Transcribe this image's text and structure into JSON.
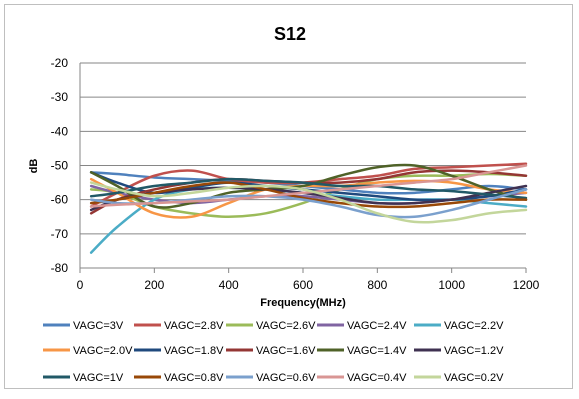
{
  "chart_data": {
    "type": "line",
    "title": "S12",
    "xlabel": "Frequency(MHz)",
    "ylabel": "dB",
    "xlim": [
      0,
      1200
    ],
    "ylim": [
      -80,
      -20
    ],
    "xticks": [
      0,
      200,
      400,
      600,
      800,
      1000,
      1200
    ],
    "yticks": [
      -80,
      -70,
      -60,
      -50,
      -40,
      -30,
      -20
    ],
    "grid": "horizontal",
    "legend": "bottom",
    "x": [
      30,
      100,
      200,
      300,
      400,
      500,
      600,
      700,
      800,
      900,
      1000,
      1100,
      1200
    ],
    "series": [
      {
        "name": "VAGC=3V",
        "color": "#4F81BD",
        "values": [
          -52,
          -52.5,
          -53.5,
          -54,
          -54.5,
          -55,
          -56,
          -57,
          -58,
          -58,
          -57,
          -56,
          -57
        ]
      },
      {
        "name": "VAGC=2.8V",
        "color": "#C0504D",
        "values": [
          -62,
          -58,
          -53,
          -51.5,
          -54,
          -55,
          -55,
          -54,
          -53,
          -51,
          -50.5,
          -50,
          -49.5
        ]
      },
      {
        "name": "VAGC=2.6V",
        "color": "#9BBB59",
        "values": [
          -57,
          -58,
          -62,
          -64,
          -65,
          -64,
          -61,
          -57,
          -54,
          -53,
          -53,
          -52.5,
          -53
        ]
      },
      {
        "name": "VAGC=2.4V",
        "color": "#8064A2",
        "values": [
          -56,
          -58,
          -60,
          -61,
          -60,
          -59,
          -59,
          -60,
          -61,
          -61,
          -60,
          -59,
          -58
        ]
      },
      {
        "name": "VAGC=2.2V",
        "color": "#4BACC6",
        "values": [
          -75.5,
          -68,
          -60,
          -57,
          -56.5,
          -57,
          -58,
          -59,
          -60,
          -60,
          -60,
          -61,
          -62
        ]
      },
      {
        "name": "VAGC=2.0V",
        "color": "#F79646",
        "values": [
          -54,
          -58,
          -64,
          -65,
          -61,
          -57,
          -56,
          -56,
          -55,
          -54.5,
          -55,
          -57,
          -58
        ]
      },
      {
        "name": "VAGC=1.8V",
        "color": "#1F497D",
        "values": [
          -52,
          -55,
          -58,
          -56.5,
          -55,
          -56,
          -57,
          -58,
          -59,
          -60,
          -60,
          -59,
          -57
        ]
      },
      {
        "name": "VAGC=1.6V",
        "color": "#943634",
        "values": [
          -64,
          -60,
          -57,
          -55,
          -54,
          -54.5,
          -55,
          -55,
          -54,
          -52,
          -51.5,
          -52,
          -53
        ]
      },
      {
        "name": "VAGC=1.4V",
        "color": "#4F6228",
        "values": [
          -52,
          -56,
          -62,
          -61,
          -58,
          -57,
          -56,
          -53,
          -50.5,
          -50,
          -53,
          -57,
          -60
        ]
      },
      {
        "name": "VAGC=1.2V",
        "color": "#3F3151",
        "values": [
          -63,
          -60,
          -58,
          -57,
          -56.5,
          -57,
          -58,
          -59.5,
          -61,
          -61,
          -60,
          -58,
          -56
        ]
      },
      {
        "name": "VAGC=1V",
        "color": "#215967",
        "values": [
          -59,
          -58,
          -56,
          -55,
          -54,
          -54.5,
          -55,
          -56,
          -56,
          -57,
          -57.5,
          -58.5,
          -59.5
        ]
      },
      {
        "name": "VAGC=0.8V",
        "color": "#984807",
        "values": [
          -61,
          -60,
          -58,
          -56,
          -55,
          -57,
          -59.5,
          -61,
          -62,
          -62,
          -61,
          -60,
          -60
        ]
      },
      {
        "name": "VAGC=0.6V",
        "color": "#7BA0CD",
        "values": [
          -60,
          -61,
          -61,
          -60,
          -59,
          -59,
          -60,
          -62,
          -64.5,
          -65,
          -63,
          -60,
          -57
        ]
      },
      {
        "name": "VAGC=0.4V",
        "color": "#D99694",
        "values": [
          -62,
          -61.5,
          -61,
          -60.5,
          -60,
          -59,
          -58,
          -57,
          -56,
          -55,
          -54,
          -52,
          -50
        ]
      },
      {
        "name": "VAGC=0.2V",
        "color": "#C3D69B",
        "values": [
          -55,
          -57,
          -59,
          -58,
          -56.5,
          -56,
          -57,
          -60,
          -64,
          -66.5,
          -66,
          -64,
          -63
        ]
      }
    ]
  }
}
